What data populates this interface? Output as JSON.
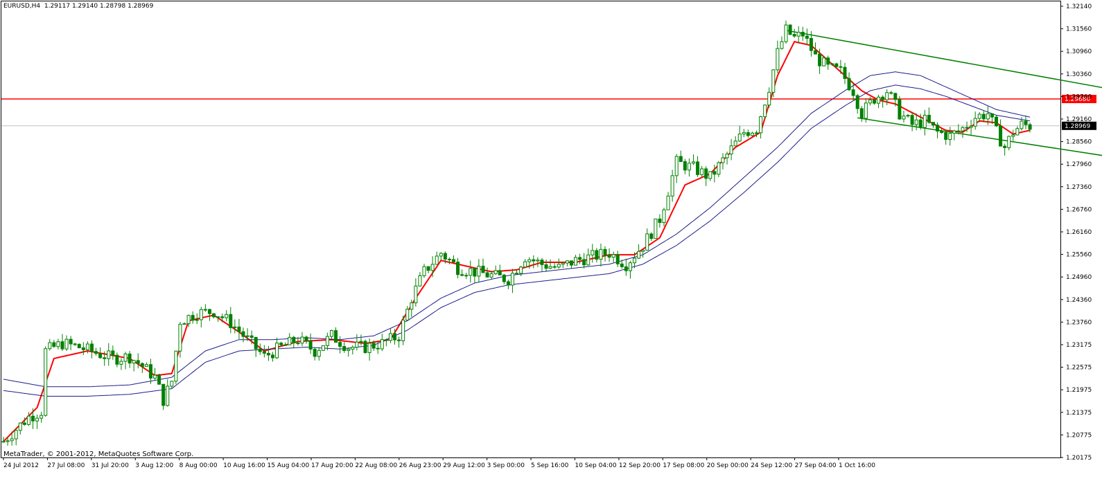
{
  "header": {
    "symbol": "EURUSD,H4",
    "ohlc": "1.29117 1.29140 1.28798 1.28969"
  },
  "footer": {
    "copyright": "MetaTrader, © 2001-2012, MetaQuotes Software Corp."
  },
  "colors": {
    "background": "#ffffff",
    "candle": "#008000",
    "ma_fast": "#ff0000",
    "ma_slow": "#1c1c8c",
    "channel": "#008000",
    "resistance": "#ff0000",
    "current_price_line": "#c0c0c0"
  },
  "chart_data": {
    "type": "candlestick",
    "title": "",
    "symbol": "EURUSD",
    "timeframe": "H4",
    "price_labels": [
      "1.32140",
      "1.31560",
      "1.30960",
      "1.30360",
      "1.29760",
      "1.29160",
      "1.28560",
      "1.27960",
      "1.27360",
      "1.26760",
      "1.26160",
      "1.25560",
      "1.24960",
      "1.24360",
      "1.23760",
      "1.23175",
      "1.22575",
      "1.21975",
      "1.21375",
      "1.20775",
      "1.20175"
    ],
    "time_labels": [
      "24 Jul 2012",
      "27 Jul 08:00",
      "31 Jul 20:00",
      "3 Aug 12:00",
      "8 Aug 00:00",
      "10 Aug 16:00",
      "15 Aug 04:00",
      "17 Aug 20:00",
      "22 Aug 08:00",
      "26 Aug 23:00",
      "29 Aug 12:00",
      "3 Sep 00:00",
      "5 Sep 16:00",
      "10 Sep 04:00",
      "12 Sep 20:00",
      "17 Sep 08:00",
      "20 Sep 00:00",
      "24 Sep 12:00",
      "27 Sep 04:00",
      "1 Oct 16:00"
    ],
    "ylim": [
      1.2015,
      1.3219
    ],
    "horizontal_line": {
      "price": 1.2968,
      "label": "1.29680"
    },
    "current_price": {
      "price": 1.28969,
      "label": "1.28969"
    },
    "channel": {
      "upper": {
        "start": [
          186,
          1.315
        ],
        "end": [
          360,
          1.2799
        ]
      },
      "lower": {
        "start": [
          203,
          1.2918
        ],
        "end": [
          339,
          1.2685
        ]
      }
    },
    "close_path": [
      [
        0,
        1.206
      ],
      [
        6,
        1.2125
      ],
      [
        9,
        1.214
      ],
      [
        10,
        1.23
      ],
      [
        14,
        1.232
      ],
      [
        18,
        1.231
      ],
      [
        22,
        1.2295
      ],
      [
        26,
        1.228
      ],
      [
        30,
        1.2285
      ],
      [
        33,
        1.226
      ],
      [
        36,
        1.223
      ],
      [
        38,
        1.217
      ],
      [
        40,
        1.222
      ],
      [
        42,
        1.238
      ],
      [
        46,
        1.24
      ],
      [
        50,
        1.2405
      ],
      [
        54,
        1.2375
      ],
      [
        58,
        1.233
      ],
      [
        62,
        1.2285
      ],
      [
        66,
        1.231
      ],
      [
        70,
        1.233
      ],
      [
        74,
        1.23
      ],
      [
        78,
        1.234
      ],
      [
        82,
        1.231
      ],
      [
        86,
        1.231
      ],
      [
        90,
        1.232
      ],
      [
        94,
        1.234
      ],
      [
        97,
        1.244
      ],
      [
        100,
        1.251
      ],
      [
        104,
        1.256
      ],
      [
        108,
        1.252
      ],
      [
        112,
        1.251
      ],
      [
        116,
        1.25
      ],
      [
        120,
        1.249
      ],
      [
        124,
        1.255
      ],
      [
        128,
        1.253
      ],
      [
        132,
        1.252
      ],
      [
        136,
        1.254
      ],
      [
        140,
        1.255
      ],
      [
        144,
        1.256
      ],
      [
        148,
        1.253
      ],
      [
        152,
        1.258
      ],
      [
        156,
        1.265
      ],
      [
        160,
        1.28
      ],
      [
        164,
        1.2785
      ],
      [
        168,
        1.276
      ],
      [
        172,
        1.282
      ],
      [
        176,
        1.288
      ],
      [
        179,
        1.289
      ],
      [
        182,
        1.3
      ],
      [
        184,
        1.309
      ],
      [
        186,
        1.315
      ],
      [
        188,
        1.313
      ],
      [
        190,
        1.314
      ],
      [
        193,
        1.308
      ],
      [
        196,
        1.305
      ],
      [
        199,
        1.304
      ],
      [
        202,
        1.299
      ],
      [
        204,
        1.293
      ],
      [
        207,
        1.297
      ],
      [
        210,
        1.299
      ],
      [
        213,
        1.293
      ],
      [
        216,
        1.29
      ],
      [
        219,
        1.291
      ],
      [
        222,
        1.288
      ],
      [
        225,
        1.287
      ],
      [
        228,
        1.289
      ],
      [
        231,
        1.292
      ],
      [
        234,
        1.293
      ],
      [
        236,
        1.288
      ],
      [
        238,
        1.284
      ],
      [
        240,
        1.288
      ],
      [
        242,
        1.29
      ],
      [
        244,
        1.2897
      ]
    ],
    "series": [
      {
        "role": "price",
        "values_ref": "close_path"
      },
      {
        "role": "moving average (fast)",
        "points": [
          [
            0,
            1.206
          ],
          [
            8,
            1.215
          ],
          [
            12,
            1.228
          ],
          [
            20,
            1.23
          ],
          [
            30,
            1.228
          ],
          [
            36,
            1.2235
          ],
          [
            40,
            1.224
          ],
          [
            44,
            1.238
          ],
          [
            50,
            1.2395
          ],
          [
            56,
            1.235
          ],
          [
            62,
            1.23
          ],
          [
            70,
            1.2325
          ],
          [
            78,
            1.233
          ],
          [
            86,
            1.232
          ],
          [
            92,
            1.233
          ],
          [
            98,
            1.244
          ],
          [
            104,
            1.254
          ],
          [
            110,
            1.2525
          ],
          [
            116,
            1.251
          ],
          [
            122,
            1.2515
          ],
          [
            128,
            1.2535
          ],
          [
            136,
            1.2535
          ],
          [
            144,
            1.2555
          ],
          [
            150,
            1.2555
          ],
          [
            156,
            1.26
          ],
          [
            162,
            1.274
          ],
          [
            168,
            1.277
          ],
          [
            174,
            1.284
          ],
          [
            180,
            1.288
          ],
          [
            184,
            1.303
          ],
          [
            188,
            1.312
          ],
          [
            192,
            1.311
          ],
          [
            198,
            1.305
          ],
          [
            204,
            1.299
          ],
          [
            208,
            1.2965
          ],
          [
            212,
            1.2955
          ],
          [
            218,
            1.292
          ],
          [
            224,
            1.2885
          ],
          [
            228,
            1.288
          ],
          [
            232,
            1.291
          ],
          [
            236,
            1.2905
          ],
          [
            240,
            1.2875
          ],
          [
            244,
            1.2885
          ]
        ]
      },
      {
        "role": "moving average (slow upper)",
        "points": [
          [
            0,
            1.2225
          ],
          [
            10,
            1.2205
          ],
          [
            20,
            1.2205
          ],
          [
            30,
            1.221
          ],
          [
            40,
            1.223
          ],
          [
            48,
            1.23
          ],
          [
            56,
            1.233
          ],
          [
            64,
            1.233
          ],
          [
            72,
            1.2335
          ],
          [
            80,
            1.233
          ],
          [
            88,
            1.234
          ],
          [
            96,
            1.238
          ],
          [
            104,
            1.244
          ],
          [
            112,
            1.248
          ],
          [
            120,
            1.25
          ],
          [
            128,
            1.251
          ],
          [
            136,
            1.252
          ],
          [
            144,
            1.253
          ],
          [
            152,
            1.2555
          ],
          [
            160,
            1.261
          ],
          [
            168,
            1.268
          ],
          [
            176,
            1.276
          ],
          [
            184,
            1.284
          ],
          [
            192,
            1.293
          ],
          [
            200,
            1.299
          ],
          [
            206,
            1.303
          ],
          [
            212,
            1.304
          ],
          [
            218,
            1.303
          ],
          [
            224,
            1.3
          ],
          [
            230,
            1.297
          ],
          [
            236,
            1.294
          ],
          [
            244,
            1.292
          ]
        ]
      },
      {
        "role": "moving average (slow lower)",
        "points": [
          [
            0,
            1.2195
          ],
          [
            10,
            1.218
          ],
          [
            20,
            1.218
          ],
          [
            30,
            1.2185
          ],
          [
            40,
            1.22
          ],
          [
            48,
            1.227
          ],
          [
            56,
            1.23
          ],
          [
            64,
            1.2305
          ],
          [
            72,
            1.231
          ],
          [
            80,
            1.2305
          ],
          [
            88,
            1.2315
          ],
          [
            96,
            1.2355
          ],
          [
            104,
            1.2415
          ],
          [
            112,
            1.2455
          ],
          [
            120,
            1.2475
          ],
          [
            128,
            1.2485
          ],
          [
            136,
            1.2495
          ],
          [
            144,
            1.2505
          ],
          [
            152,
            1.253
          ],
          [
            160,
            1.258
          ],
          [
            168,
            1.2645
          ],
          [
            176,
            1.272
          ],
          [
            184,
            1.28
          ],
          [
            192,
            1.289
          ],
          [
            200,
            1.295
          ],
          [
            206,
            1.299
          ],
          [
            212,
            1.3005
          ],
          [
            218,
            1.2995
          ],
          [
            224,
            1.2975
          ],
          [
            230,
            1.295
          ],
          [
            236,
            1.2925
          ],
          [
            244,
            1.291
          ]
        ]
      }
    ]
  }
}
